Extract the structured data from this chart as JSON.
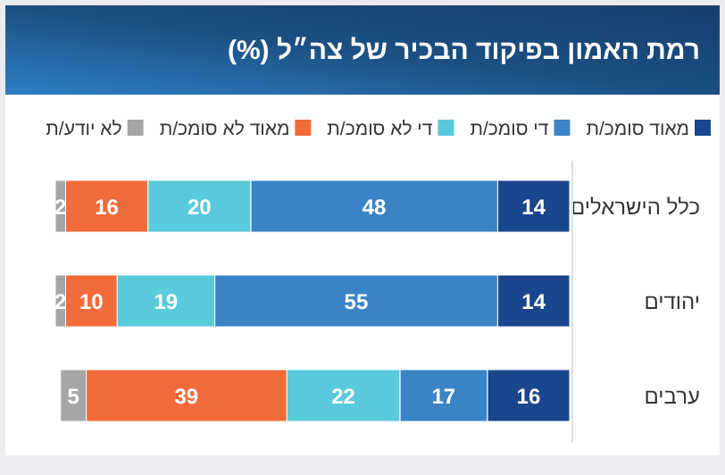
{
  "chart_data": {
    "type": "bar",
    "title": "רמת האמון בפיקוד הבכיר של צה״ל (%)",
    "orientation": "horizontal",
    "stacked": true,
    "data_labels": true,
    "legend": "top",
    "categories": [
      "כלל הישראלים",
      "יהודים",
      "ערבים"
    ],
    "series": [
      {
        "name": "מאוד סומכ/ת",
        "color": "#1a468c",
        "values": [
          14,
          14,
          16
        ]
      },
      {
        "name": "די סומכ/ת",
        "color": "#3a84c6",
        "values": [
          48,
          55,
          17
        ]
      },
      {
        "name": "די לא סומכ/ת",
        "color": "#58cadb",
        "values": [
          20,
          19,
          22
        ]
      },
      {
        "name": "מאוד לא סומכ/ת",
        "color": "#f26b3a",
        "values": [
          16,
          10,
          39
        ]
      },
      {
        "name": "לא יודע/ת",
        "color": "#a6a6a6",
        "values": [
          2,
          2,
          5
        ]
      }
    ]
  }
}
